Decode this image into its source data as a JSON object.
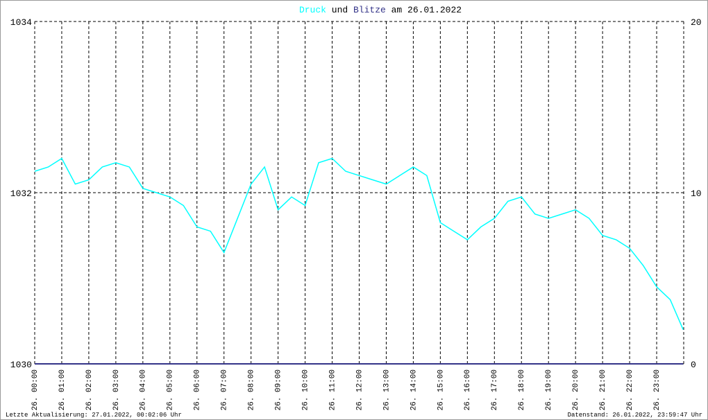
{
  "chart_data": {
    "type": "line",
    "title_connector": "und",
    "title_suffix": "am 26.01.2022",
    "footer_left": "Letzte Aktualisierung: 27.01.2022, 00:02:06 Uhr",
    "footer_right": "Datenstand: 26.01.2022, 23:59:47 Uhr",
    "x": [
      0,
      0.5,
      1,
      1.5,
      2,
      2.5,
      3,
      3.5,
      4,
      4.5,
      5,
      5.5,
      6,
      6.5,
      7,
      7.5,
      8,
      8.5,
      9,
      9.5,
      10,
      10.5,
      11,
      11.5,
      12,
      12.5,
      13,
      13.5,
      14,
      14.5,
      15,
      15.5,
      16,
      16.5,
      17,
      17.5,
      18,
      18.5,
      19,
      19.5,
      20,
      20.5,
      21,
      21.5,
      22,
      22.5,
      23,
      23.5,
      23.98
    ],
    "series": [
      {
        "name": "Druck",
        "color": "#00ffff",
        "values": [
          1032.25,
          1032.3,
          1032.4,
          1032.1,
          1032.15,
          1032.3,
          1032.35,
          1032.3,
          1032.05,
          1032.0,
          1031.95,
          1031.85,
          1031.6,
          1031.55,
          1031.3,
          1031.7,
          1032.1,
          1032.3,
          1031.8,
          1031.95,
          1031.85,
          1032.35,
          1032.4,
          1032.25,
          1032.2,
          1032.15,
          1032.1,
          1032.2,
          1032.3,
          1032.2,
          1031.65,
          1031.55,
          1031.45,
          1031.6,
          1031.7,
          1031.9,
          1031.95,
          1031.75,
          1031.7,
          1031.75,
          1031.8,
          1031.7,
          1031.5,
          1031.45,
          1031.35,
          1031.15,
          1030.9,
          1030.75,
          1030.4
        ]
      },
      {
        "name": "Blitze",
        "color": "#333388",
        "axis": "y2",
        "values": [
          0,
          0,
          0,
          0,
          0,
          0,
          0,
          0,
          0,
          0,
          0,
          0,
          0,
          0,
          0,
          0,
          0,
          0,
          0,
          0,
          0,
          0,
          0,
          0,
          0,
          0,
          0,
          0,
          0,
          0,
          0,
          0,
          0,
          0,
          0,
          0,
          0,
          0,
          0,
          0,
          0,
          0,
          0,
          0,
          0,
          0,
          0,
          0,
          0
        ]
      }
    ],
    "xlim": [
      0,
      24
    ],
    "xticks": [
      {
        "value": 0,
        "label": "26. 00:00"
      },
      {
        "value": 1,
        "label": "26. 01:00"
      },
      {
        "value": 2,
        "label": "26. 02:00"
      },
      {
        "value": 3,
        "label": "26. 03:00"
      },
      {
        "value": 4,
        "label": "26. 04:00"
      },
      {
        "value": 5,
        "label": "26. 05:00"
      },
      {
        "value": 6,
        "label": "26. 06:00"
      },
      {
        "value": 7,
        "label": "26. 07:00"
      },
      {
        "value": 8,
        "label": "26. 08:00"
      },
      {
        "value": 9,
        "label": "26. 09:00"
      },
      {
        "value": 10,
        "label": "26. 10:00"
      },
      {
        "value": 11,
        "label": "26. 11:00"
      },
      {
        "value": 12,
        "label": "26. 12:00"
      },
      {
        "value": 13,
        "label": "26. 13:00"
      },
      {
        "value": 14,
        "label": "26. 14:00"
      },
      {
        "value": 15,
        "label": "26. 15:00"
      },
      {
        "value": 16,
        "label": "26. 16:00"
      },
      {
        "value": 17,
        "label": "26. 17:00"
      },
      {
        "value": 18,
        "label": "26. 18:00"
      },
      {
        "value": 19,
        "label": "26. 19:00"
      },
      {
        "value": 20,
        "label": "26. 20:00"
      },
      {
        "value": 21,
        "label": "26. 21:00"
      },
      {
        "value": 22,
        "label": "26. 22:00"
      },
      {
        "value": 23,
        "label": "26. 23:00"
      }
    ],
    "ylim": [
      1030,
      1034
    ],
    "yticks": [
      1030,
      1032,
      1034
    ],
    "y2lim": [
      0,
      20
    ],
    "y2ticks": [
      0,
      10,
      20
    ],
    "grid": true
  }
}
